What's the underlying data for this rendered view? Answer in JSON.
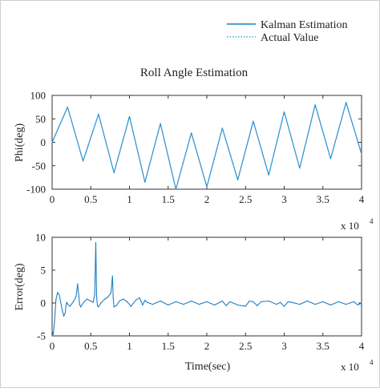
{
  "chart_data": [
    {
      "type": "line",
      "title": "Roll Angle Estimation",
      "xlabel": "",
      "ylabel": "Phi(deg)",
      "xlim": [
        0,
        40000
      ],
      "ylim": [
        -100,
        100
      ],
      "x_exponent_label": "x 10",
      "x_exponent_power": "4",
      "xticks": [
        0,
        5000,
        10000,
        15000,
        20000,
        25000,
        30000,
        35000,
        40000
      ],
      "xtick_labels": [
        "0",
        "0.5",
        "1",
        "1.5",
        "2",
        "2.5",
        "3",
        "3.5",
        "4"
      ],
      "yticks": [
        -100,
        -50,
        0,
        50,
        100
      ],
      "ytick_labels": [
        "-100",
        "-50",
        "0",
        "50",
        "100"
      ],
      "grid": false,
      "legend_position": "top-right",
      "series": [
        {
          "name": "Kalman Estimation",
          "color": "#1f7fc0",
          "style": "solid",
          "x": [
            0,
            2000,
            4000,
            6000,
            8000,
            10000,
            12000,
            14000,
            16000,
            18000,
            20000,
            22000,
            24000,
            26000,
            28000,
            30000,
            32000,
            34000,
            36000,
            38000,
            40000
          ],
          "y": [
            0,
            75,
            -40,
            60,
            -65,
            55,
            -85,
            40,
            -100,
            20,
            -95,
            30,
            -80,
            45,
            -70,
            65,
            -55,
            80,
            -35,
            85,
            -25
          ]
        },
        {
          "name": "Actual Value",
          "color": "#3aa6dc",
          "style": "dotted",
          "x": [
            0,
            2000,
            4000,
            6000,
            8000,
            10000,
            12000,
            14000,
            16000,
            18000,
            20000,
            22000,
            24000,
            26000,
            28000,
            30000,
            32000,
            34000,
            36000,
            38000,
            40000
          ],
          "y": [
            0,
            75,
            -40,
            60,
            -65,
            55,
            -85,
            40,
            -100,
            20,
            -95,
            30,
            -80,
            45,
            -70,
            65,
            -55,
            80,
            -35,
            85,
            -25
          ]
        }
      ],
      "envelope_note_free": true
    },
    {
      "type": "line",
      "title": "",
      "xlabel": "Time(sec)",
      "ylabel": "Error(deg)",
      "xlim": [
        0,
        40000
      ],
      "ylim": [
        -5,
        10
      ],
      "x_exponent_label": "x 10",
      "x_exponent_power": "4",
      "xticks": [
        0,
        5000,
        10000,
        15000,
        20000,
        25000,
        30000,
        35000,
        40000
      ],
      "xtick_labels": [
        "0",
        "0.5",
        "1",
        "1.5",
        "2",
        "2.5",
        "3",
        "3.5",
        "4"
      ],
      "yticks": [
        -5,
        0,
        5,
        10
      ],
      "ytick_labels": [
        "-5",
        "0",
        "5",
        "10"
      ],
      "grid": false,
      "series": [
        {
          "name": "",
          "color": "#1f7fc0",
          "style": "solid",
          "x": [
            0,
            150,
            300,
            500,
            700,
            900,
            1100,
            1300,
            1500,
            1700,
            1800,
            1900,
            2100,
            2300,
            2500,
            2800,
            3100,
            3300,
            3450,
            3550,
            3700,
            4000,
            4500,
            5000,
            5300,
            5500,
            5650,
            5750,
            5850,
            6000,
            6300,
            6800,
            7200,
            7600,
            7800,
            7900,
            8000,
            8300,
            8700,
            9200,
            9700,
            10200,
            10800,
            11300,
            11700,
            12000,
            12300,
            13000,
            14000,
            15000,
            16000,
            17000,
            18000,
            19000,
            20000,
            21000,
            22000,
            22500,
            23000,
            24000,
            25000,
            25500,
            26000,
            26500,
            27000,
            28000,
            29000,
            29500,
            30000,
            30500,
            31000,
            32000,
            33000,
            34000,
            35000,
            36000,
            37000,
            38000,
            39000,
            39500,
            40000
          ],
          "y": [
            -4.2,
            -4.8,
            -3.0,
            0.5,
            1.6,
            1.3,
            0.2,
            -1.0,
            -2.0,
            -1.5,
            -0.3,
            0.1,
            -0.3,
            -0.5,
            -0.2,
            0.3,
            1.0,
            2.9,
            1.1,
            -0.2,
            -0.6,
            0.0,
            0.6,
            0.3,
            0.1,
            1.2,
            9.2,
            1.0,
            -0.4,
            -0.6,
            0.0,
            0.6,
            0.9,
            1.5,
            4.1,
            0.8,
            -0.6,
            -0.4,
            0.3,
            0.6,
            0.2,
            -0.5,
            0.4,
            0.8,
            -0.3,
            0.4,
            0.1,
            -0.2,
            0.3,
            -0.3,
            0.2,
            -0.2,
            0.3,
            -0.2,
            0.2,
            -0.3,
            0.3,
            -0.4,
            0.2,
            -0.3,
            -0.5,
            0.3,
            0.2,
            -0.4,
            0.2,
            0.3,
            -0.2,
            0.1,
            -0.5,
            0.2,
            0.1,
            -0.2,
            0.3,
            -0.2,
            0.2,
            -0.3,
            0.2,
            -0.2,
            0.2,
            -0.3,
            0.0
          ]
        }
      ]
    }
  ]
}
